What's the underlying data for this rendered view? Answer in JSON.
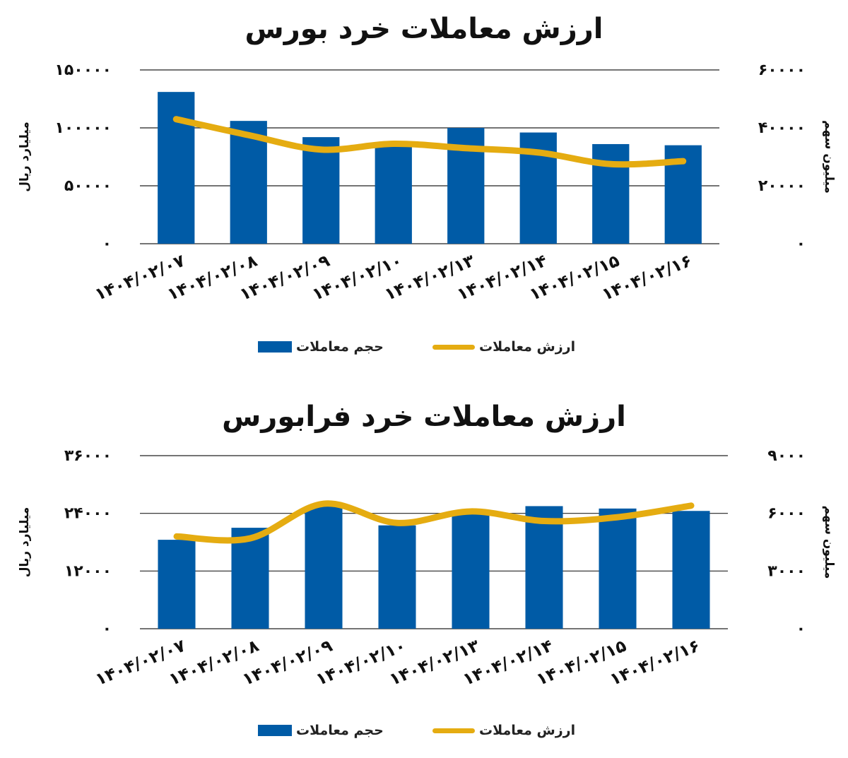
{
  "colors": {
    "bar": "#005ba6",
    "line": "#e5ac11",
    "grid": "#222222",
    "text": "#111111"
  },
  "legend": {
    "bar_label": "حجم معاملات",
    "line_label": "ارزش معاملات"
  },
  "chart_data": [
    {
      "type": "bar",
      "title": "ارزش معاملات خرد بورس",
      "categories": [
        "1404/02/07",
        "1404/02/08",
        "1404/02/09",
        "1404/02/10",
        "1404/02/13",
        "1404/02/14",
        "1404/02/15",
        "1404/02/16"
      ],
      "category_labels": [
        "۱۴۰۴/۰۲/۰۷",
        "۱۴۰۴/۰۲/۰۸",
        "۱۴۰۴/۰۲/۰۹",
        "۱۴۰۴/۰۲/۱۰",
        "۱۴۰۴/۰۲/۱۳",
        "۱۴۰۴/۰۲/۱۴",
        "۱۴۰۴/۰۲/۱۵",
        "۱۴۰۴/۰۲/۱۶"
      ],
      "ylabel_left": "میلیارد ریال",
      "ylabel_right": "میلیون سهم",
      "ylim_left": [
        0,
        150000
      ],
      "ylim_right": [
        0,
        60000
      ],
      "ticks_left": [
        "۰",
        "۵۰۰۰۰",
        "۱۰۰۰۰۰",
        "۱۵۰۰۰۰"
      ],
      "ticks_right": [
        "۰",
        "۲۰۰۰۰",
        "۴۰۰۰۰",
        "۶۰۰۰۰"
      ],
      "grid": true,
      "legend_position": "bottom",
      "series": [
        {
          "name": "حجم معاملات",
          "type": "bar",
          "axis": "left",
          "values": [
            131000,
            106000,
            92000,
            87000,
            100000,
            96000,
            86000,
            85000
          ]
        },
        {
          "name": "ارزش معاملات",
          "type": "line",
          "axis": "right",
          "values": [
            43000,
            37500,
            32500,
            34500,
            33000,
            31500,
            27500,
            28500
          ]
        }
      ]
    },
    {
      "type": "bar",
      "title": "ارزش معاملات خرد فرابورس",
      "categories": [
        "1404/02/07",
        "1404/02/08",
        "1404/02/09",
        "1404/02/10",
        "1404/02/13",
        "1404/02/14",
        "1404/02/15",
        "1404/02/16"
      ],
      "category_labels": [
        "۱۴۰۴/۰۲/۰۷",
        "۱۴۰۴/۰۲/۰۸",
        "۱۴۰۴/۰۲/۰۹",
        "۱۴۰۴/۰۲/۱۰",
        "۱۴۰۴/۰۲/۱۳",
        "۱۴۰۴/۰۲/۱۴",
        "۱۴۰۴/۰۲/۱۵",
        "۱۴۰۴/۰۲/۱۶"
      ],
      "ylabel_left": "میلیارد ریال",
      "ylabel_right": "میلیون سهم",
      "ylim_left": [
        0,
        36000
      ],
      "ylim_right": [
        0,
        9000
      ],
      "ticks_left": [
        "۰",
        "۱۲۰۰۰",
        "۲۴۰۰۰",
        "۳۶۰۰۰"
      ],
      "ticks_right": [
        "۰",
        "۳۰۰۰",
        "۶۰۰۰",
        "۹۰۰۰"
      ],
      "grid": true,
      "legend_position": "bottom",
      "series": [
        {
          "name": "حجم معاملات",
          "type": "bar",
          "axis": "left",
          "values": [
            18500,
            21000,
            25500,
            21500,
            24000,
            25500,
            25000,
            24500
          ]
        },
        {
          "name": "ارزش معاملات",
          "type": "line",
          "axis": "right",
          "values": [
            4800,
            4700,
            6500,
            5500,
            6100,
            5600,
            5800,
            6400
          ]
        }
      ]
    }
  ]
}
